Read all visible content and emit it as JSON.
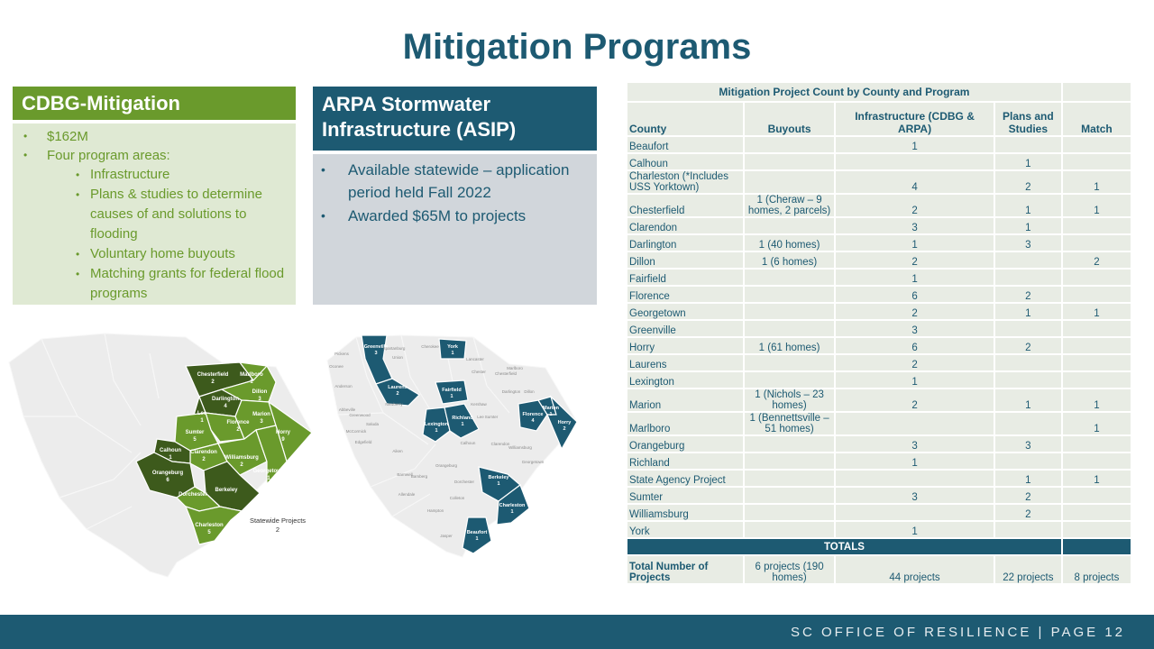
{
  "title": "Mitigation Programs",
  "cdbg": {
    "header": "CDBG-Mitigation",
    "bullets": [
      "$162M",
      "Four program areas:"
    ],
    "sub_bullets": [
      "Infrastructure",
      "Plans & studies to determine causes of and solutions to flooding",
      "Voluntary home buyouts",
      "Matching grants for federal flood programs"
    ]
  },
  "arpa": {
    "header": "ARPA Stormwater Infrastructure (ASIP)",
    "bullets": [
      "Available statewide – application period held Fall 2022",
      "Awarded $65M to projects"
    ]
  },
  "map_cdbg": {
    "labels": [
      {
        "name": "Chesterfield",
        "count": "2"
      },
      {
        "name": "Marlboro",
        "count": "1"
      },
      {
        "name": "Darlington",
        "count": "4"
      },
      {
        "name": "Dillon",
        "count": "3"
      },
      {
        "name": "Lee",
        "count": "1"
      },
      {
        "name": "Florence",
        "count": "2"
      },
      {
        "name": "Marion",
        "count": "3"
      },
      {
        "name": "Horry",
        "count": "9"
      },
      {
        "name": "Sumter",
        "count": "5"
      },
      {
        "name": "Clarendon",
        "count": "2"
      },
      {
        "name": "Williamsburg",
        "count": "2"
      },
      {
        "name": "Calhoun",
        "count": "1"
      },
      {
        "name": "Georgetown",
        "count": "1"
      },
      {
        "name": "Orangeburg",
        "count": "6"
      },
      {
        "name": "Berkeley",
        "count": ""
      },
      {
        "name": "Dorchester",
        "count": ""
      },
      {
        "name": "Charleston",
        "count": "5"
      }
    ],
    "statewide_label": "Statewide Projects",
    "statewide_count": "2"
  },
  "map_arpa": {
    "highlighted": [
      {
        "name": "Greenville",
        "count": "3"
      },
      {
        "name": "York",
        "count": "1"
      },
      {
        "name": "Laurens",
        "count": "2"
      },
      {
        "name": "Fairfield",
        "count": "1"
      },
      {
        "name": "Lexington",
        "count": "1"
      },
      {
        "name": "Richland",
        "count": "1"
      },
      {
        "name": "Florence",
        "count": "4"
      },
      {
        "name": "Marion",
        "count": "1"
      },
      {
        "name": "Horry",
        "count": "2"
      },
      {
        "name": "Berkeley",
        "count": "1"
      },
      {
        "name": "Charleston",
        "count": "1"
      },
      {
        "name": "Beaufort",
        "count": "1"
      }
    ],
    "other_labels": [
      "Pickens",
      "Oconee",
      "Anderson",
      "Abbeville",
      "Greenwood",
      "McCormick",
      "Edgefield",
      "Saluda",
      "Newberry",
      "Union",
      "Spartanburg",
      "Cherokee",
      "Chester",
      "Lancaster",
      "Chesterfield",
      "Marlboro",
      "Kershaw",
      "Darlington",
      "Dillon",
      "Lee",
      "Sumter",
      "Aiken",
      "Calhoun",
      "Clarendon",
      "Williamsburg",
      "Orangeburg",
      "Barnwell",
      "Bamberg",
      "Dorchester",
      "Georgetown",
      "Allendale",
      "Hampton",
      "Colleton",
      "Jasper"
    ]
  },
  "table": {
    "caption": "Mitigation Project Count by County and Program",
    "headers": [
      "County",
      "Buyouts",
      "Infrastructure (CDBG & ARPA)",
      "Plans and Studies",
      "Match"
    ],
    "rows": [
      [
        "Beaufort",
        "",
        "1",
        "",
        ""
      ],
      [
        "Calhoun",
        "",
        "",
        "1",
        ""
      ],
      [
        "Charleston (*Includes USS Yorktown)",
        "",
        "4",
        "2",
        "1"
      ],
      [
        "Chesterfield",
        "1 (Cheraw – 9 homes, 2 parcels)",
        "2",
        "1",
        "1"
      ],
      [
        "Clarendon",
        "",
        "3",
        "1",
        ""
      ],
      [
        "Darlington",
        "1 (40 homes)",
        "1",
        "3",
        ""
      ],
      [
        "Dillon",
        "1 (6 homes)",
        "2",
        "",
        "2"
      ],
      [
        "Fairfield",
        "",
        "1",
        "",
        ""
      ],
      [
        "Florence",
        "",
        "6",
        "2",
        ""
      ],
      [
        "Georgetown",
        "",
        "2",
        "1",
        "1"
      ],
      [
        "Greenville",
        "",
        "3",
        "",
        ""
      ],
      [
        "Horry",
        "1 (61 homes)",
        "6",
        "2",
        ""
      ],
      [
        "Laurens",
        "",
        "2",
        "",
        ""
      ],
      [
        "Lexington",
        "",
        "1",
        "",
        ""
      ],
      [
        "Marion",
        "1 (Nichols – 23 homes)",
        "2",
        "1",
        "1"
      ],
      [
        "Marlboro",
        "1 (Bennettsville – 51 homes)",
        "",
        "",
        "1"
      ],
      [
        "Orangeburg",
        "",
        "3",
        "3",
        ""
      ],
      [
        "Richland",
        "",
        "1",
        "",
        ""
      ],
      [
        "State Agency Project",
        "",
        "",
        "1",
        "1"
      ],
      [
        "Sumter",
        "",
        "3",
        "2",
        ""
      ],
      [
        "Williamsburg",
        "",
        "",
        "2",
        ""
      ],
      [
        "York",
        "",
        "1",
        "",
        ""
      ]
    ],
    "totals_label": "TOTALS",
    "totals_row": [
      "Total Number of Projects",
      "6 projects (190 homes)",
      "44 projects",
      "22 projects",
      "8 projects"
    ]
  },
  "footer": {
    "text": "SC OFFICE OF RESILIENCE  |  PAGE 12"
  },
  "colors": {
    "green": "#6a9a2c",
    "dark_green": "#3d5a1c",
    "teal": "#1d5a72",
    "light_green": "#dfe9d3",
    "gray": "#d1d6db"
  }
}
